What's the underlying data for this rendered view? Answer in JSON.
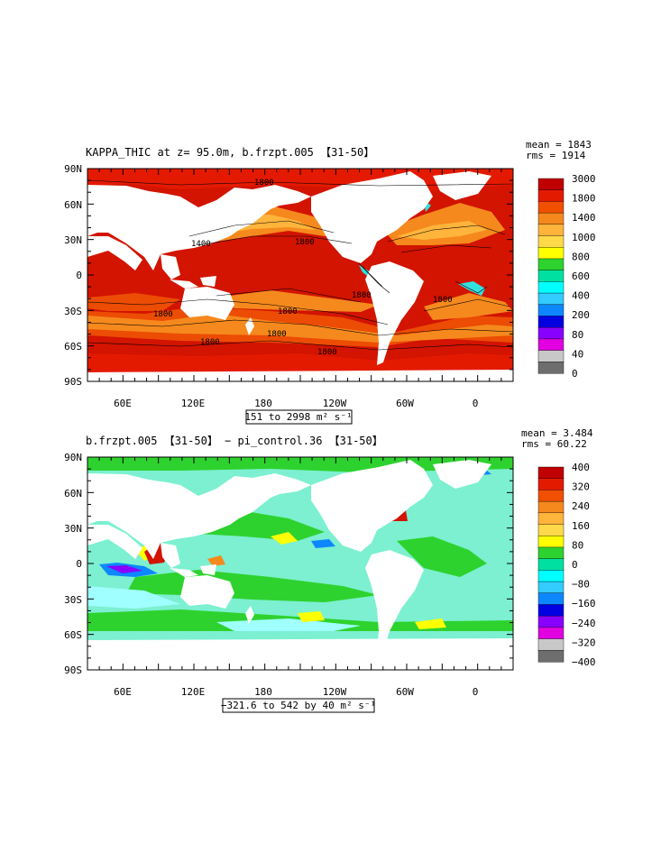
{
  "panels": [
    {
      "title": "KAPPA_THIC at z=  95.0m, b.frzpt.005 【31-50】",
      "mean": "mean = 1843",
      "rms": "rms = 1914",
      "range_label": "151 to 2998 m² s⁻¹",
      "contour_labels": [
        "1800",
        "1400",
        "1800",
        "1800",
        "1800",
        "1800",
        "1800",
        "1800",
        "1800",
        "1800"
      ],
      "colorbar": {
        "levels": [
          "3000",
          "1800",
          "1400",
          "1000",
          "800",
          "600",
          "400",
          "200",
          "80",
          "40",
          "0"
        ],
        "colors": [
          "#c00000",
          "#e41a00",
          "#f05000",
          "#f5891d",
          "#ffb43c",
          "#ffd94a",
          "#ffff00",
          "#2ed22e",
          "#00e0a0",
          "#00ffff",
          "#33ccff",
          "#0d87ff",
          "#0000e0",
          "#8800ff",
          "#e000e0",
          "#c8c8c8",
          "#6e6e6e"
        ]
      }
    },
    {
      "title": "b.frzpt.005 【31-50】 − pi_control.36 【31-50】",
      "mean": "mean = 3.484",
      "rms": "rms = 60.22",
      "range_label": "−321.6 to 542 by 40 m² s⁻¹",
      "colorbar": {
        "levels": [
          "400",
          "320",
          "240",
          "160",
          "80",
          "0",
          "−80",
          "−160",
          "−240",
          "−320",
          "−400"
        ],
        "colors": [
          "#c00000",
          "#e41a00",
          "#f05000",
          "#f5891d",
          "#ffb43c",
          "#ffd94a",
          "#ffff00",
          "#2ed22e",
          "#00e0a0",
          "#00ffff",
          "#33ccff",
          "#0d87ff",
          "#0000e0",
          "#8800ff",
          "#e000e0",
          "#c8c8c8",
          "#6e6e6e"
        ]
      }
    }
  ],
  "axes": {
    "lat_labels": [
      "90N",
      "60N",
      "30N",
      "0",
      "30S",
      "60S",
      "90S"
    ],
    "lon_labels": [
      "60E",
      "120E",
      "180",
      "120W",
      "60W",
      "0"
    ]
  },
  "fill_colors": {
    "ocean_high": "#d21400",
    "ocean_mid": "#ec4c04",
    "ocean_orange": "#f5891d",
    "ocean_light": "#ffb43c",
    "cyan": "#33e0e0",
    "diff_green": "#2ed22e",
    "diff_cyan": "#7cf0d0",
    "diff_light": "#a0ffff",
    "diff_yellow": "#ffff00",
    "diff_orange": "#f5891d",
    "diff_red": "#d21400",
    "diff_blue": "#0d87ff",
    "diff_purple": "#8800ff",
    "land": "#ffffff"
  }
}
